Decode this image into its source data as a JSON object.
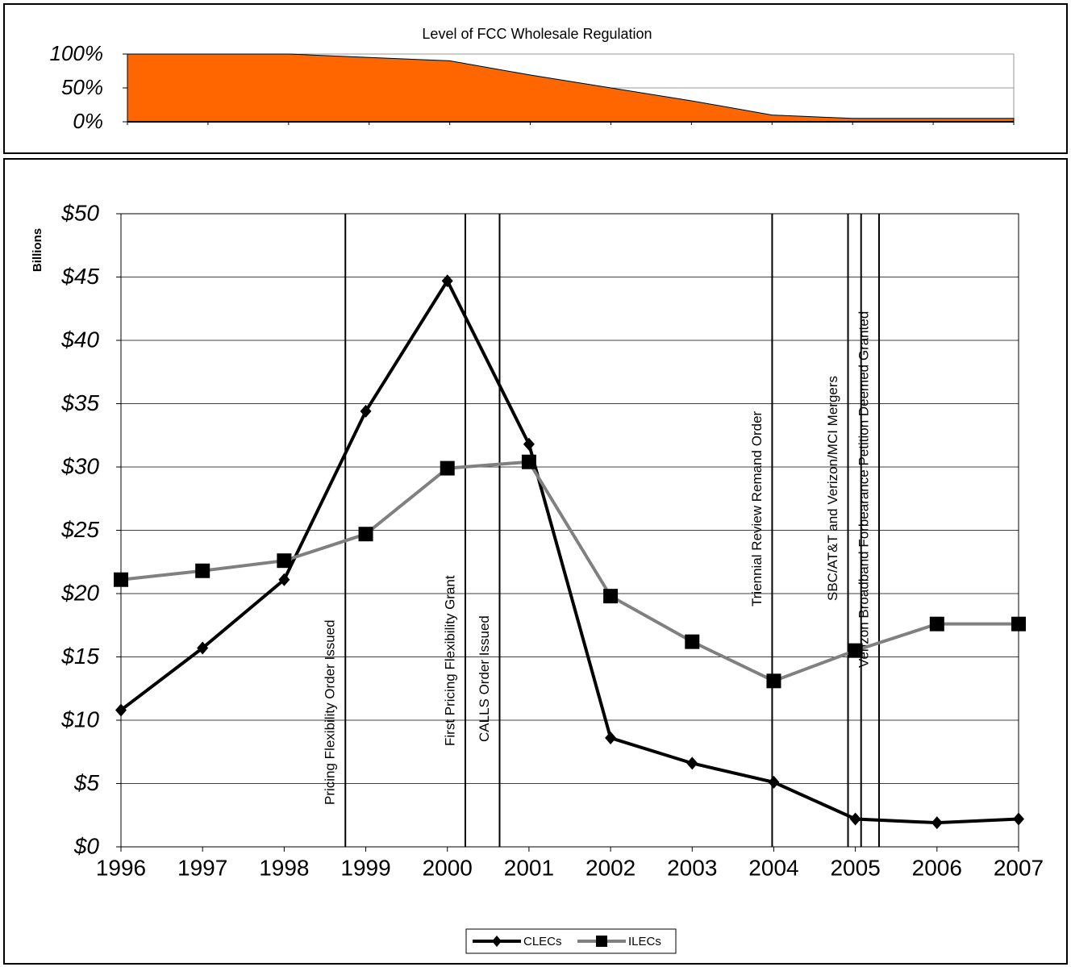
{
  "chart_data": [
    {
      "type": "area",
      "title": "Level of FCC Wholesale Regulation",
      "values": [
        100,
        100,
        100,
        95,
        90,
        69,
        50,
        31,
        10,
        5,
        5,
        5
      ],
      "color": "#ff6600",
      "ylim": [
        0,
        100
      ],
      "yticks": [
        {
          "value": 0,
          "label": "0%"
        },
        {
          "value": 50,
          "label": "50%"
        },
        {
          "value": 100,
          "label": "100%"
        }
      ],
      "grid": true
    },
    {
      "type": "line",
      "y_label": "Billions",
      "categories": [
        "1996",
        "1997",
        "1998",
        "1999",
        "2000",
        "2001",
        "2002",
        "2003",
        "2004",
        "2005",
        "2006",
        "2007"
      ],
      "series": [
        {
          "name": "CLECs",
          "color": "#000000",
          "marker": "diamond",
          "values": [
            10.8,
            15.7,
            21.1,
            34.4,
            44.7,
            31.8,
            8.6,
            6.6,
            5.1,
            2.2,
            1.9,
            2.2
          ]
        },
        {
          "name": "ILECs",
          "color": "#808080",
          "marker": "square",
          "values": [
            21.1,
            21.8,
            22.6,
            24.7,
            29.9,
            30.4,
            19.8,
            16.2,
            13.1,
            15.5,
            17.6,
            17.6
          ]
        }
      ],
      "ylim": [
        0,
        50
      ],
      "yticks": [
        {
          "value": 0,
          "label": "$0"
        },
        {
          "value": 5,
          "label": "$5"
        },
        {
          "value": 10,
          "label": "$10"
        },
        {
          "value": 15,
          "label": "$15"
        },
        {
          "value": 20,
          "label": "$20"
        },
        {
          "value": 25,
          "label": "$25"
        },
        {
          "value": 30,
          "label": "$30"
        },
        {
          "value": 35,
          "label": "$35"
        },
        {
          "value": 40,
          "label": "$40"
        },
        {
          "value": 45,
          "label": "$45"
        },
        {
          "value": 50,
          "label": "$50"
        }
      ],
      "grid": true,
      "legend": "bottom",
      "events": [
        {
          "label": "Pricing Flexibility Order Issued",
          "x": [
            1998.75
          ]
        },
        {
          "label": "First Pricing Flexibility Grant",
          "x": [
            2000.22
          ]
        },
        {
          "label": "CALLS Order Issued",
          "x": [
            2000.64
          ]
        },
        {
          "label": "Triennial Review Remand Order",
          "x": [
            2003.98
          ]
        },
        {
          "label": "SBC/AT&T and Verizon/MCI Mergers",
          "x": [
            2004.91,
            2005.07
          ]
        },
        {
          "label": "Verizon Broadband Forbearance Petition Deemed Granted",
          "x": [
            2005.29
          ]
        }
      ]
    }
  ]
}
